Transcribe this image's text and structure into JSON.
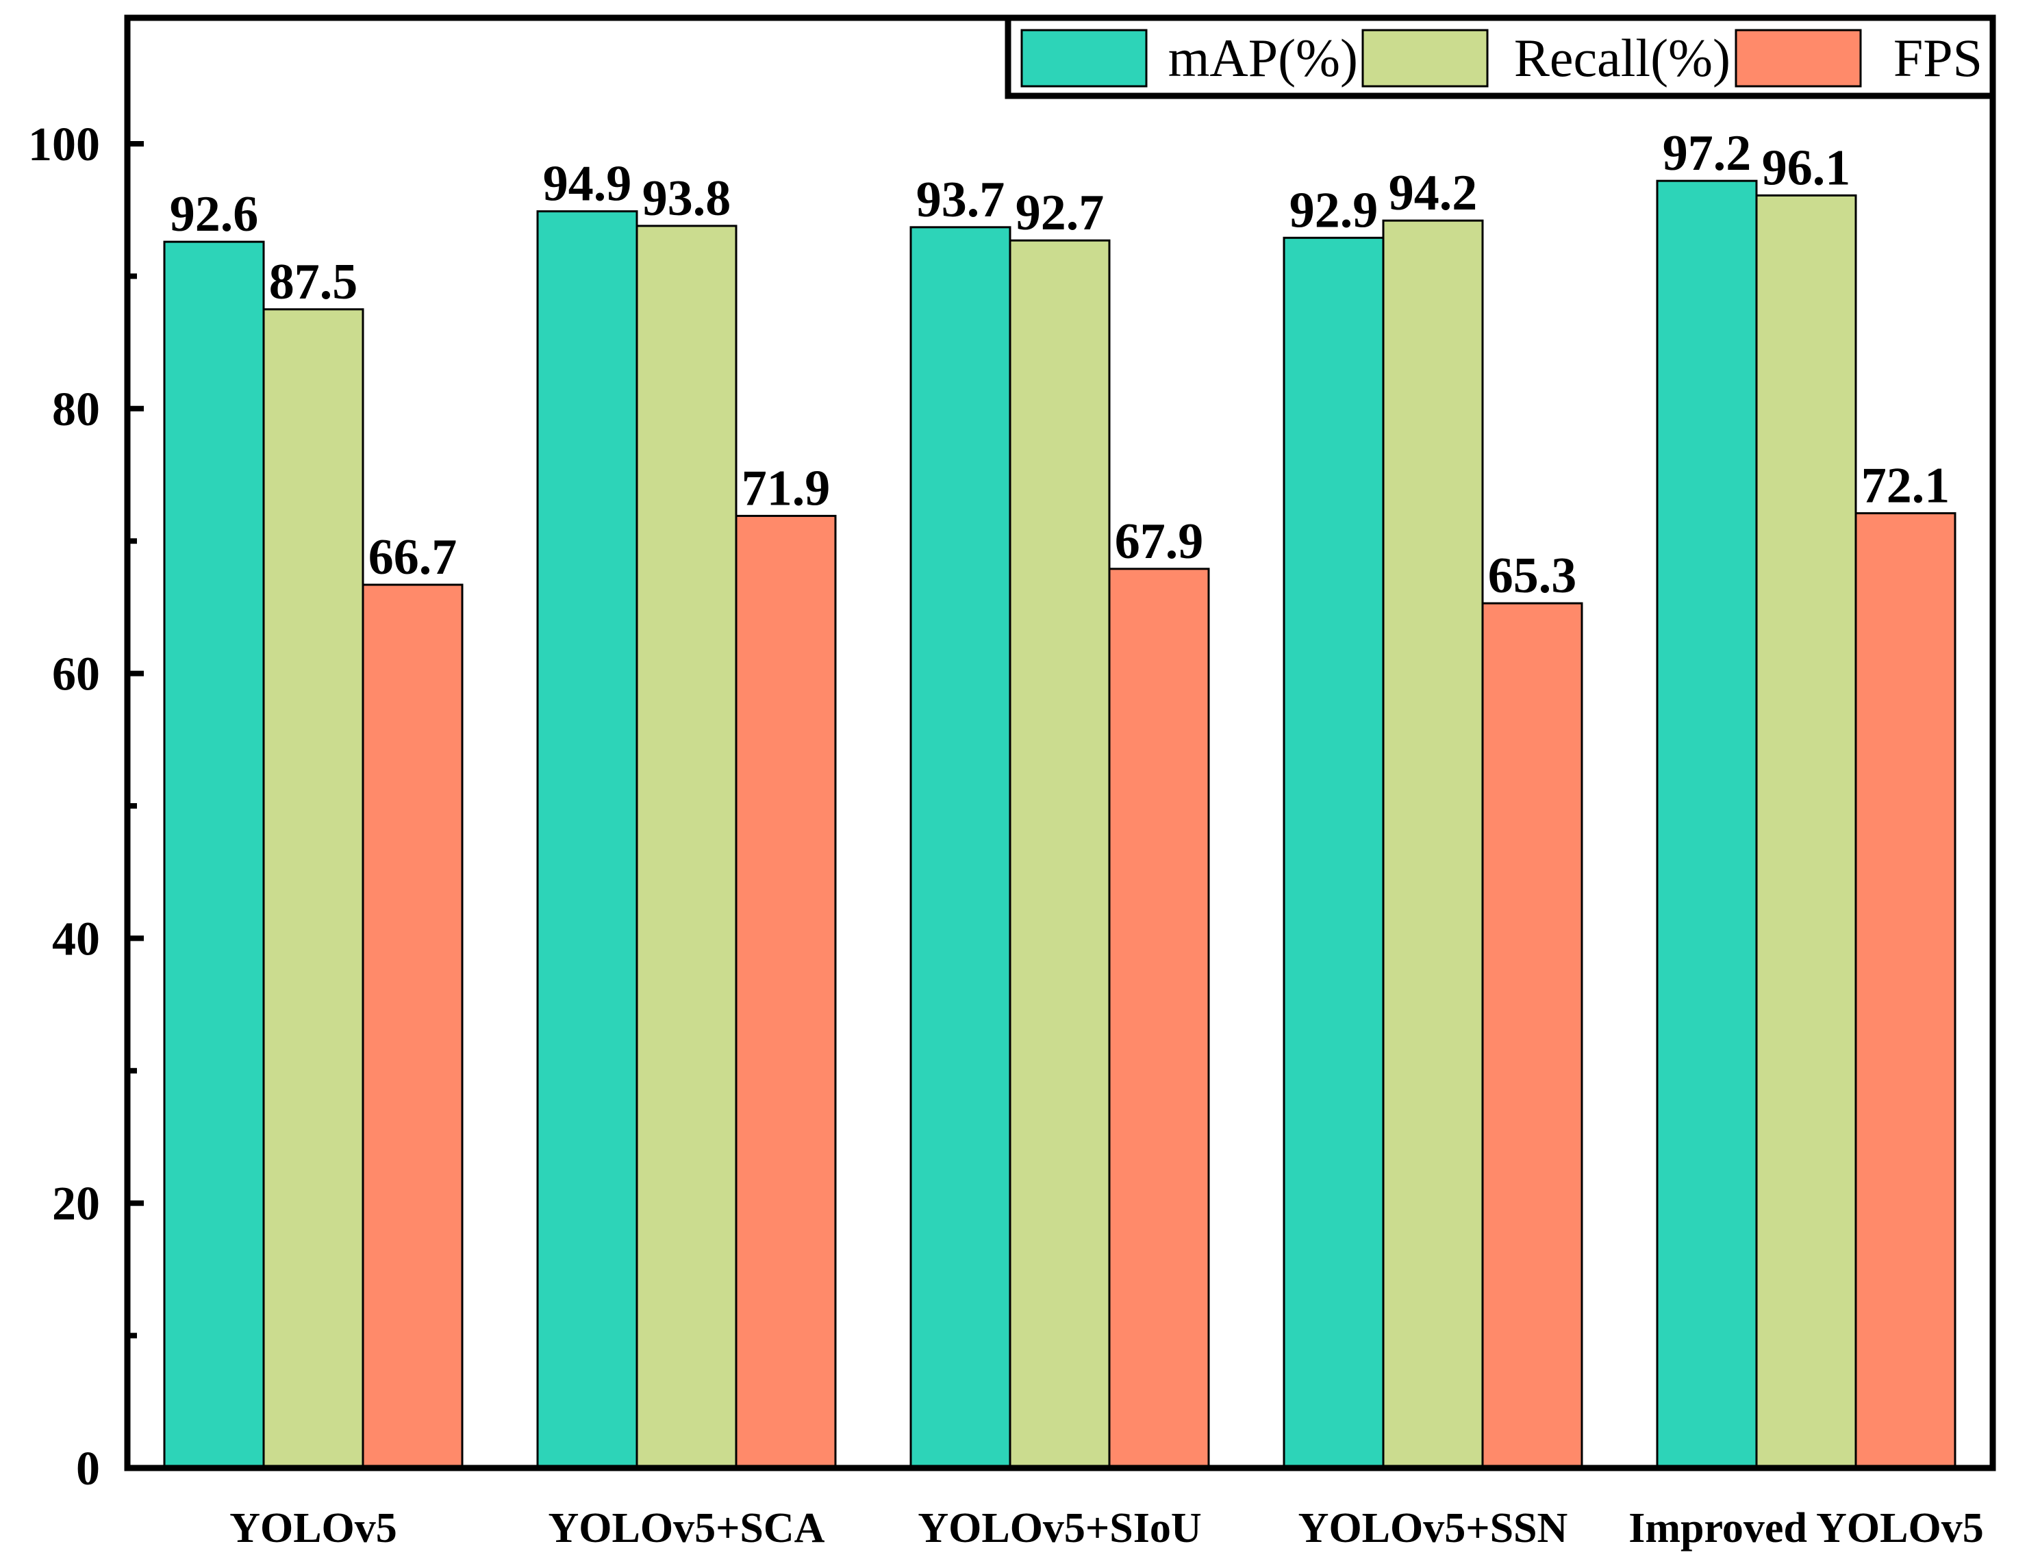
{
  "chart_data": {
    "type": "bar",
    "title": "",
    "xlabel": "",
    "ylabel": "",
    "ylim": [
      0,
      110
    ],
    "yticks": [
      0,
      20,
      40,
      60,
      80,
      100
    ],
    "yticks_minor": [
      10,
      30,
      50,
      70,
      90
    ],
    "grid": false,
    "legend_position": "top-right",
    "categories": [
      "YOLOv5",
      "YOLOv5+SCA",
      "YOLOv5+SIoU",
      "YOLOv5+SSN",
      "Improved YOLOv5"
    ],
    "series": [
      {
        "name": "mAP(%)",
        "color": "#2dd4b8",
        "values": [
          92.6,
          94.9,
          93.7,
          92.9,
          97.2
        ]
      },
      {
        "name": "Recall(%)",
        "color": "#cbdc8f",
        "values": [
          87.5,
          93.8,
          92.7,
          94.2,
          96.1
        ]
      },
      {
        "name": "FPS",
        "color": "#ff8a6a",
        "values": [
          66.7,
          71.9,
          67.9,
          65.3,
          72.1
        ]
      }
    ]
  }
}
